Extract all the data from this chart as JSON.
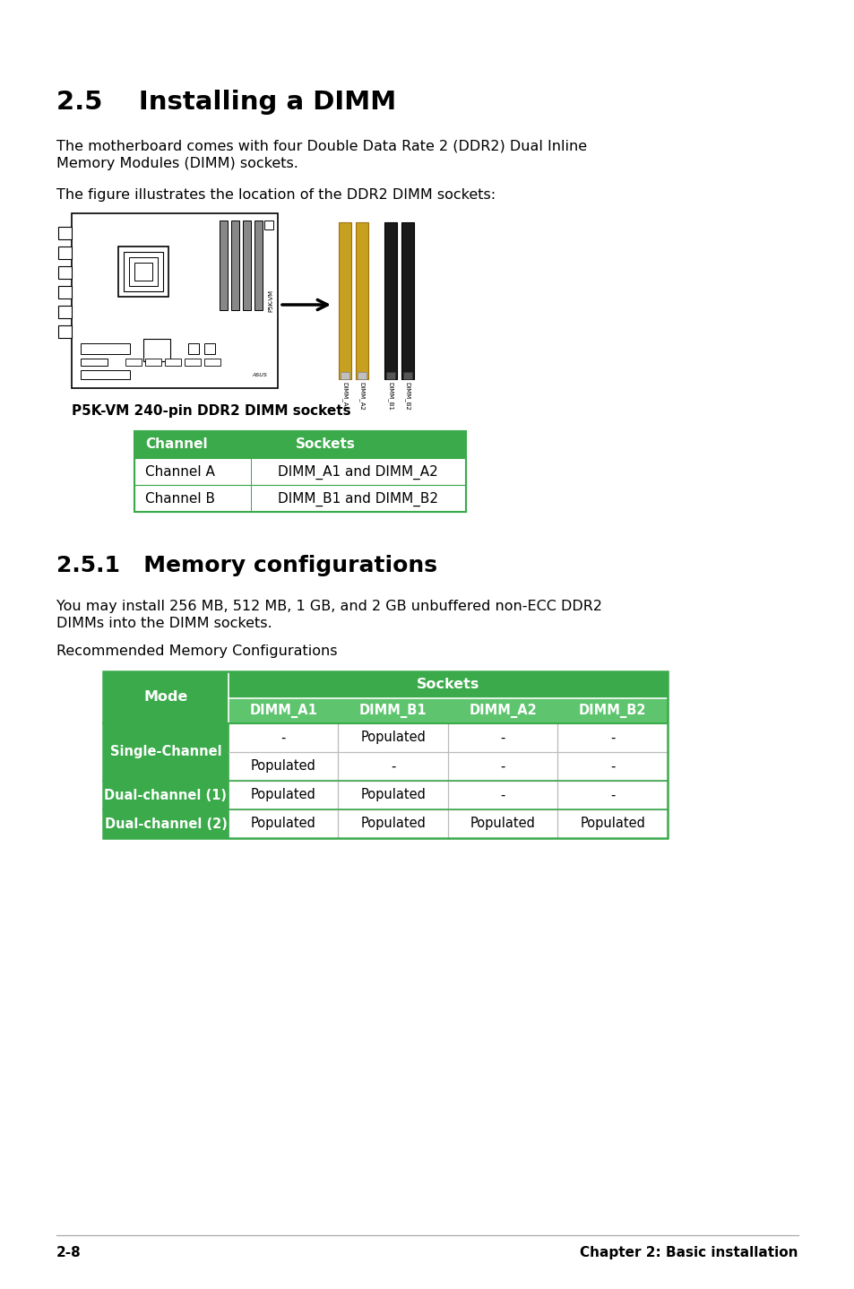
{
  "title": "2.5    Installing a DIMM",
  "section2": "2.5.1   Memory configurations",
  "para1_l1": "The motherboard comes with four Double Data Rate 2 (DDR2) Dual Inline",
  "para1_l2": "Memory Modules (DIMM) sockets.",
  "para2": "The figure illustrates the location of the DDR2 DIMM sockets:",
  "fig_caption": "P5K-VM 240-pin DDR2 DIMM sockets",
  "para3_l1": "You may install 256 MB, 512 MB, 1 GB, and 2 GB unbuffered non-ECC DDR2",
  "para3_l2": "DIMMs into the DIMM sockets.",
  "para4": "Recommended Memory Configurations",
  "table1_header": [
    "Channel",
    "Sockets"
  ],
  "table1_rows": [
    [
      "Channel A",
      "DIMM_A1 and DIMM_A2"
    ],
    [
      "Channel B",
      "DIMM_B1 and DIMM_B2"
    ]
  ],
  "table2_header_top": "Sockets",
  "table2_header_mode": "Mode",
  "table2_header_sockets": [
    "DIMM_A1",
    "DIMM_B1",
    "DIMM_A2",
    "DIMM_B2"
  ],
  "table2_rows": [
    [
      "Single-Channel",
      "-",
      "Populated",
      "-",
      "-"
    ],
    [
      "",
      "Populated",
      "-",
      "-",
      "-"
    ],
    [
      "Dual-channel (1)",
      "Populated",
      "Populated",
      "-",
      "-"
    ],
    [
      "Dual-channel (2)",
      "Populated",
      "Populated",
      "Populated",
      "Populated"
    ]
  ],
  "green_color": "#3aaa4a",
  "light_green_color": "#5ec46e",
  "white_text": "#ffffff",
  "black_text": "#000000",
  "footer_left": "2-8",
  "footer_right": "Chapter 2: Basic installation",
  "bg_color": "#ffffff"
}
